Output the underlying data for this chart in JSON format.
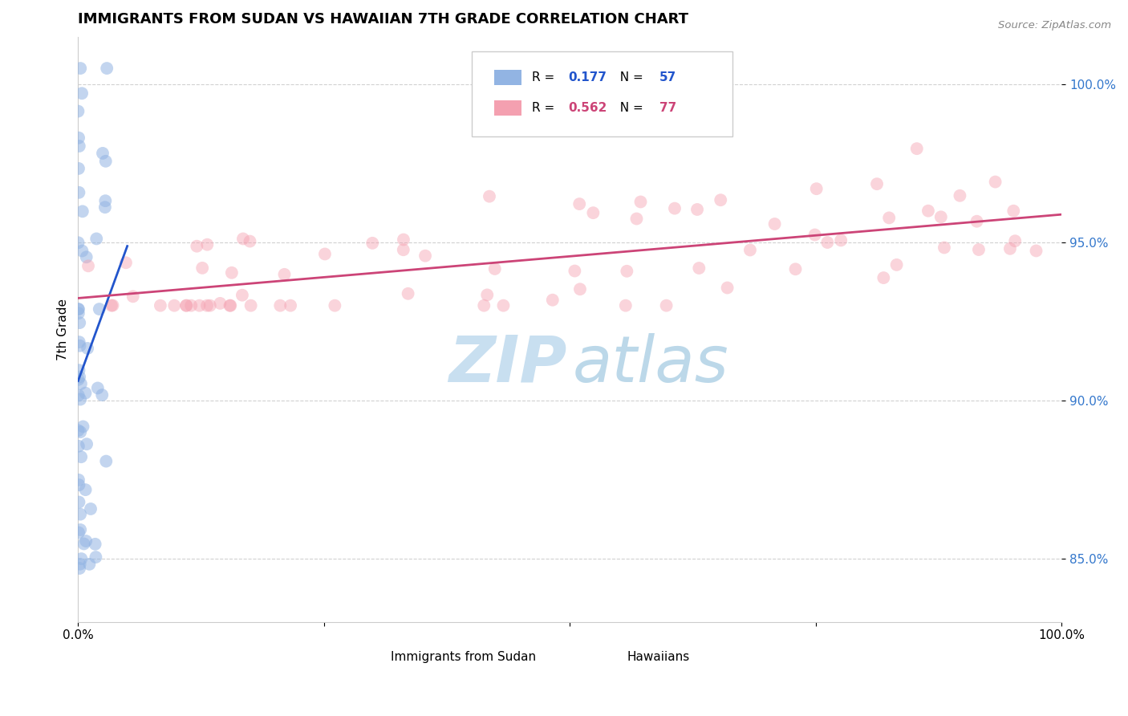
{
  "title": "IMMIGRANTS FROM SUDAN VS HAWAIIAN 7TH GRADE CORRELATION CHART",
  "source_text": "Source: ZipAtlas.com",
  "ylabel": "7th Grade",
  "legend_blue_R": "0.177",
  "legend_blue_N": "57",
  "legend_pink_R": "0.562",
  "legend_pink_N": "77",
  "blue_color": "#92b4e3",
  "pink_color": "#f4a0b0",
  "blue_line_color": "#2255cc",
  "pink_line_color": "#cc4477",
  "watermark_zip_color": "#c8dff0",
  "watermark_atlas_color": "#a0c8e0",
  "xlim": [
    0.0,
    100.0
  ],
  "ylim": [
    83.0,
    101.5
  ],
  "y_ticks": [
    85.0,
    90.0,
    95.0,
    100.0
  ],
  "y_tick_labels": [
    "85.0%",
    "90.0%",
    "95.0%",
    "100.0%"
  ]
}
